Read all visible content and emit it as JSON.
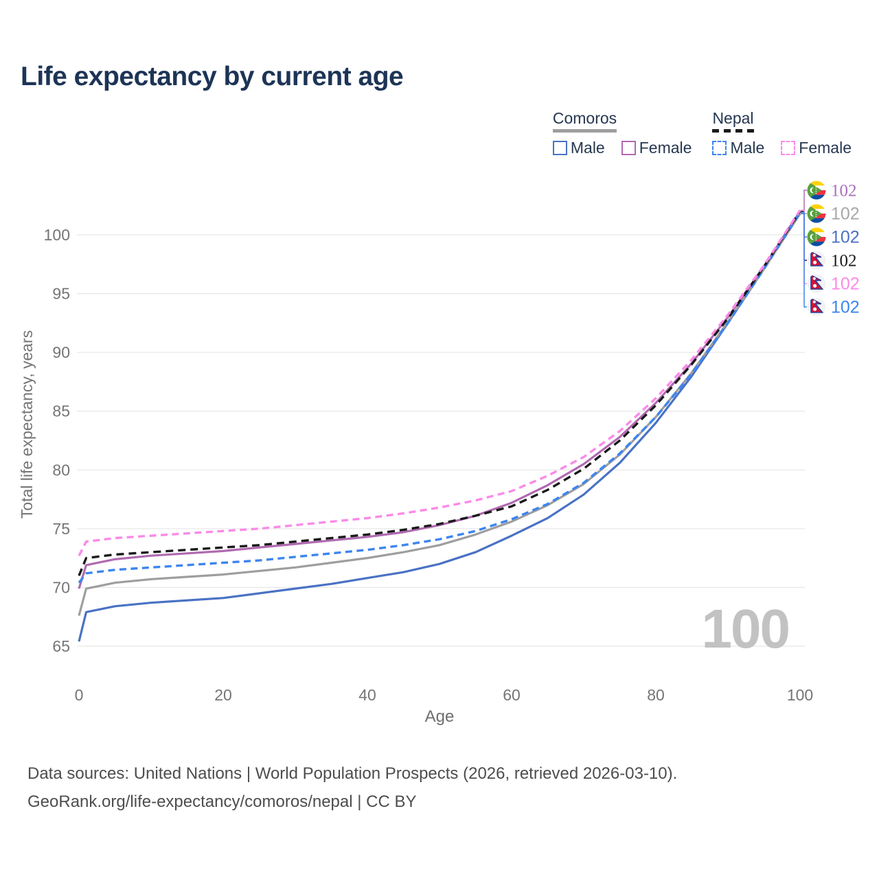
{
  "title": "Life expectancy by current age",
  "legend": {
    "groups": [
      {
        "name": "Comoros",
        "line_style": "solid",
        "underline_color": "#9e9e9e",
        "items": [
          {
            "label": "Male",
            "color": "#4a72c4",
            "dashed": false
          },
          {
            "label": "Female",
            "color": "#b06ab0",
            "dashed": false
          }
        ]
      },
      {
        "name": "Nepal",
        "line_style": "dashed",
        "underline_color": "#1a1a1a",
        "items": [
          {
            "label": "Male",
            "color": "#3c85f0",
            "dashed": true
          },
          {
            "label": "Female",
            "color": "#fb8ae8",
            "dashed": true
          }
        ]
      }
    ]
  },
  "watermark": "100",
  "footer": {
    "line1": "Data sources: United Nations | World Population Prospects (2026, retrieved 2026-03-10).",
    "line2": "GeoRank.org/life-expectancy/comoros/nepal | CC BY"
  },
  "chart_data": {
    "type": "line",
    "title": "Life expectancy by current age",
    "xlabel": "Age",
    "ylabel": "Total life expectancy, years",
    "xlim": [
      0,
      100
    ],
    "ylim": [
      63.5,
      103.5
    ],
    "x_ticks": [
      0,
      20,
      40,
      60,
      80,
      100
    ],
    "y_ticks": [
      65,
      70,
      75,
      80,
      85,
      90,
      95,
      100
    ],
    "grid": "horizontal",
    "colors": {
      "grid": "#e8e8e8",
      "axis_text": "#757575",
      "title_text": "#1d3456",
      "watermark": "#c2c2c2"
    },
    "x": [
      0,
      1,
      5,
      10,
      15,
      20,
      25,
      30,
      35,
      40,
      45,
      50,
      55,
      60,
      65,
      70,
      75,
      80,
      85,
      90,
      95,
      100
    ],
    "series": [
      {
        "id": "comoros_male",
        "country": "Comoros",
        "group": "Male",
        "color": "#4a72c4",
        "dashed": false,
        "values": [
          65.4,
          67.9,
          68.4,
          68.7,
          68.9,
          69.1,
          69.5,
          69.9,
          70.3,
          70.8,
          71.3,
          72.0,
          73.0,
          74.4,
          75.9,
          77.9,
          80.6,
          84.0,
          88.0,
          92.5,
          97.1,
          101.8
        ]
      },
      {
        "id": "comoros",
        "country": "Comoros",
        "group": "Total",
        "color": "#9e9e9e",
        "dashed": false,
        "values": [
          67.6,
          69.9,
          70.4,
          70.7,
          70.9,
          71.1,
          71.4,
          71.7,
          72.1,
          72.5,
          73.0,
          73.6,
          74.5,
          75.6,
          77.0,
          78.8,
          81.3,
          84.5,
          88.3,
          92.6,
          97.1,
          101.8
        ]
      },
      {
        "id": "comoros_female",
        "country": "Comoros",
        "group": "Female",
        "color": "#b06ab0",
        "dashed": false,
        "values": [
          69.9,
          71.9,
          72.4,
          72.7,
          72.9,
          73.1,
          73.4,
          73.7,
          74.0,
          74.3,
          74.7,
          75.3,
          76.1,
          77.2,
          78.7,
          80.5,
          82.8,
          85.7,
          89.1,
          93.0,
          97.3,
          102.0
        ]
      },
      {
        "id": "nepal_male",
        "country": "Nepal",
        "group": "Male",
        "color": "#3c85f0",
        "dashed": true,
        "values": [
          70.4,
          71.2,
          71.5,
          71.7,
          71.9,
          72.1,
          72.3,
          72.6,
          72.9,
          73.2,
          73.6,
          74.1,
          74.8,
          75.8,
          77.1,
          78.9,
          81.4,
          84.5,
          88.2,
          92.5,
          97.1,
          101.9
        ]
      },
      {
        "id": "nepal",
        "country": "Nepal",
        "group": "Total",
        "color": "#1a1a1a",
        "dashed": true,
        "values": [
          71.0,
          72.5,
          72.8,
          73.0,
          73.2,
          73.4,
          73.6,
          73.9,
          74.2,
          74.5,
          74.9,
          75.4,
          76.1,
          76.9,
          78.3,
          80.1,
          82.5,
          85.5,
          89.0,
          92.9,
          97.3,
          102.0
        ]
      },
      {
        "id": "nepal_female",
        "country": "Nepal",
        "group": "Female",
        "color": "#fb8ae8",
        "dashed": true,
        "values": [
          72.7,
          73.9,
          74.2,
          74.4,
          74.6,
          74.8,
          75.0,
          75.3,
          75.6,
          75.9,
          76.3,
          76.8,
          77.4,
          78.2,
          79.5,
          81.1,
          83.3,
          86.1,
          89.4,
          93.2,
          97.4,
          102.1
        ]
      }
    ],
    "end_labels": [
      {
        "value": "102",
        "series": "comoros_female",
        "flag": "comoros",
        "color": "#aa70bd",
        "serif": true
      },
      {
        "value": "102",
        "series": "comoros",
        "flag": "comoros",
        "color": "#a8a8a8",
        "serif": false
      },
      {
        "value": "102",
        "series": "comoros_male",
        "flag": "comoros",
        "color": "#4a72c4",
        "serif": false
      },
      {
        "value": "102",
        "series": "nepal",
        "flag": "nepal",
        "color": "#1a1a1a",
        "serif": true
      },
      {
        "value": "102",
        "series": "nepal_female",
        "flag": "nepal",
        "color": "#fb8ae8",
        "serif": false
      },
      {
        "value": "102",
        "series": "nepal_male",
        "flag": "nepal",
        "color": "#3c85f0",
        "serif": false
      }
    ]
  }
}
